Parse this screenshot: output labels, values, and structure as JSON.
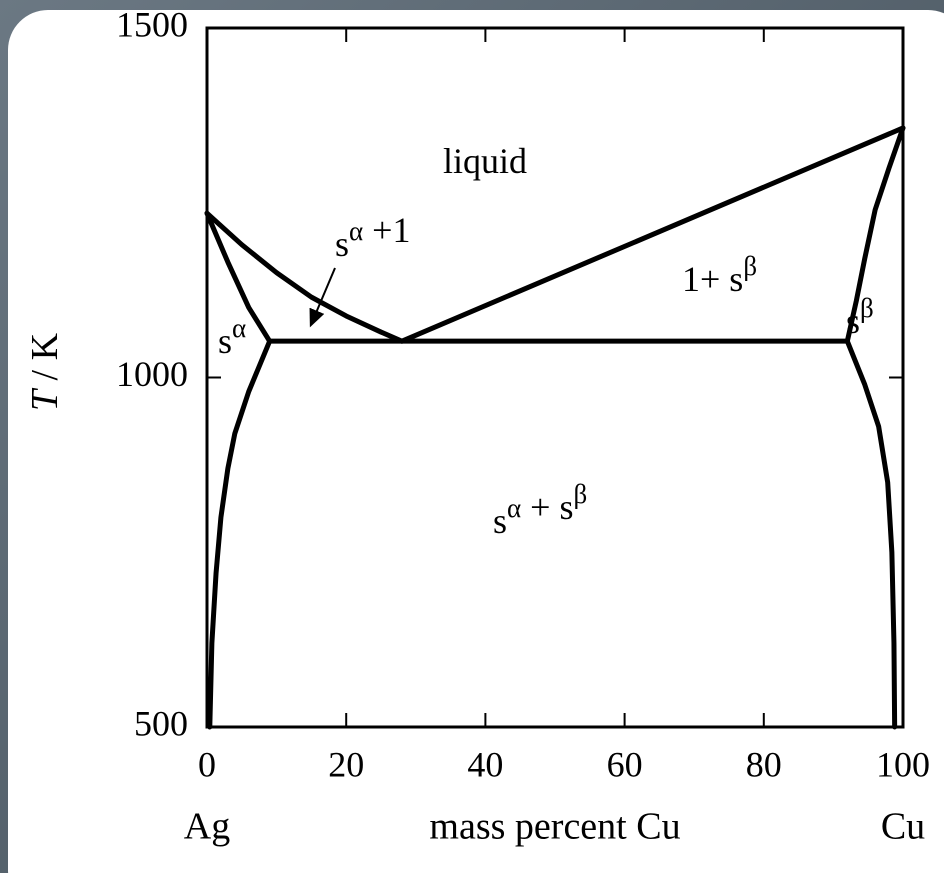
{
  "chart_data": {
    "type": "line",
    "xlim": [
      0,
      100
    ],
    "ylim": [
      500,
      1500
    ],
    "xticks": [
      0,
      20,
      40,
      60,
      80,
      100
    ],
    "yticks": [
      500,
      1000,
      1500
    ],
    "ylabel": {
      "symbol": "T",
      "unit": "/ K"
    },
    "xlabel": "mass percent Cu",
    "x_end_labels": [
      "Ag",
      "Cu"
    ],
    "annotations": [
      [
        "liquid"
      ],
      [
        "s",
        {
          "sup": "α"
        },
        " +1"
      ],
      [
        "1+ s",
        {
          "sup": "β"
        }
      ],
      [
        "s",
        {
          "sup": "α"
        }
      ],
      [
        "s",
        {
          "sup": "β"
        }
      ],
      [
        "s",
        {
          "sup": "α"
        },
        " + s",
        {
          "sup": "β"
        }
      ]
    ],
    "series": [
      {
        "color": "#000000",
        "x": [
          0,
          5,
          10,
          15,
          20,
          25,
          28
        ],
        "values": [
          1235,
          1190,
          1150,
          1115,
          1088,
          1065,
          1052
        ]
      },
      {
        "color": "#000000",
        "x": [
          28,
          100
        ],
        "values": [
          1052,
          1357
        ]
      },
      {
        "color": "#000000",
        "x": [
          9,
          92
        ],
        "values": [
          1052,
          1052
        ]
      },
      {
        "color": "#000000",
        "x": [
          0,
          3,
          6,
          9
        ],
        "values": [
          1235,
          1165,
          1100,
          1052
        ]
      },
      {
        "color": "#000000",
        "x": [
          9,
          6,
          4,
          3,
          2,
          1.3,
          0.7,
          0.4
        ],
        "values": [
          1052,
          980,
          920,
          870,
          800,
          720,
          620,
          500
        ]
      },
      {
        "color": "#000000",
        "x": [
          100,
          98,
          96,
          94.5,
          93.3,
          92
        ],
        "values": [
          1357,
          1300,
          1240,
          1170,
          1110,
          1052
        ]
      },
      {
        "color": "#000000",
        "x": [
          92,
          94.5,
          96.5,
          97.8,
          98.4,
          98.7,
          98.8
        ],
        "values": [
          1052,
          990,
          930,
          850,
          750,
          620,
          500
        ]
      }
    ]
  }
}
